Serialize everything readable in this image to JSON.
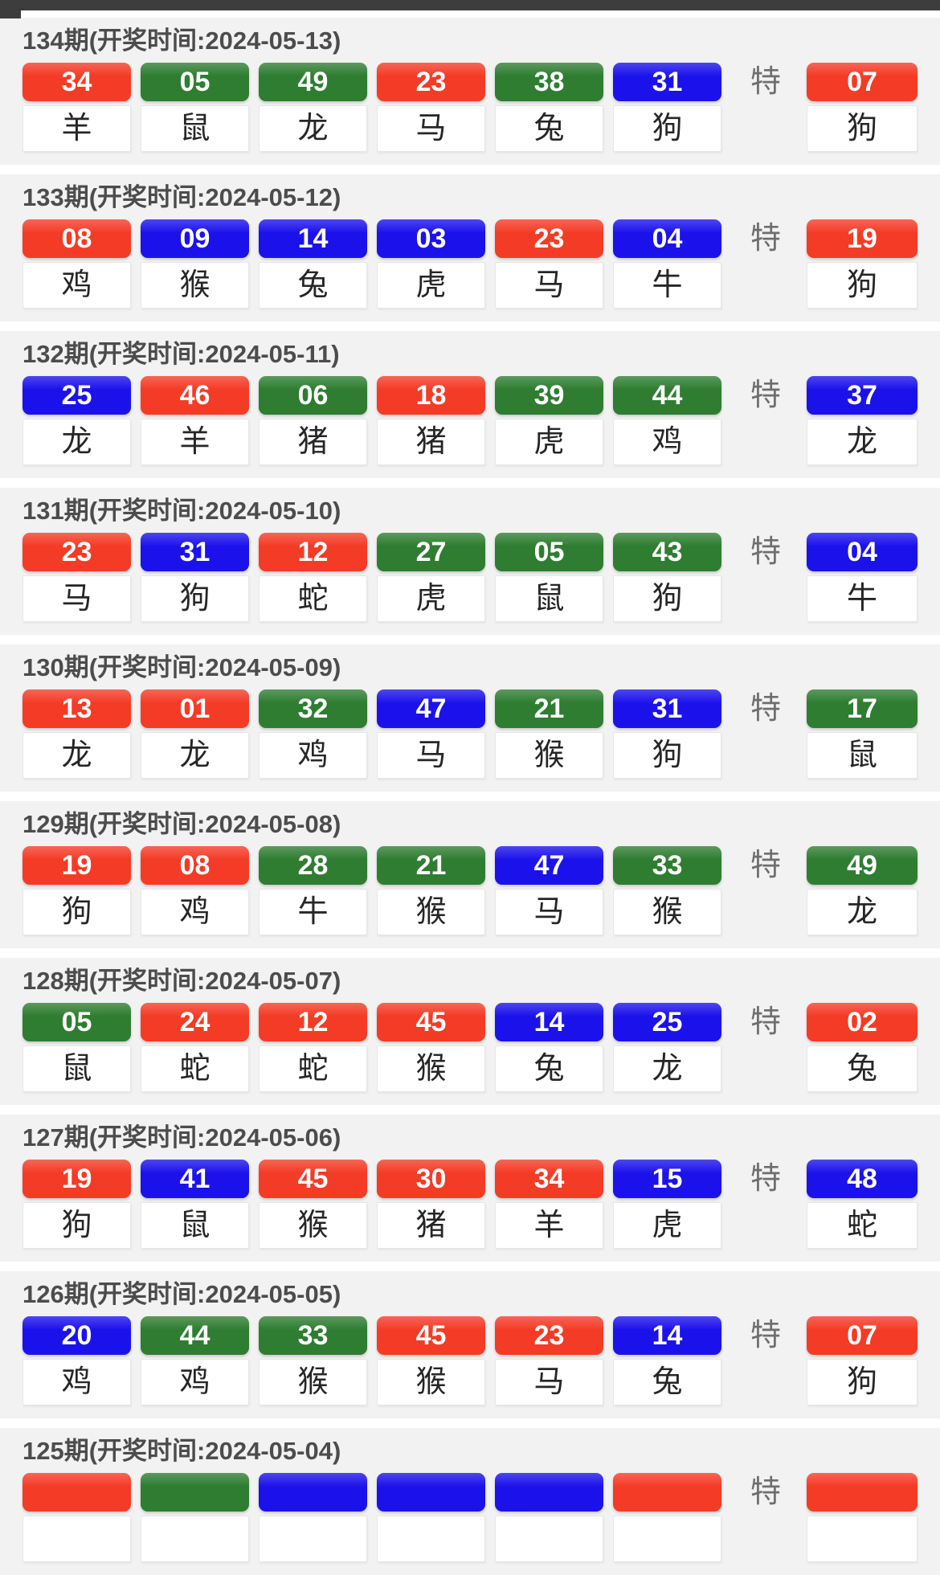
{
  "labels": {
    "special": "特"
  },
  "colors": {
    "red": "#f43b26",
    "green": "#2e7d31",
    "blue": "#1b12eb"
  },
  "draws": [
    {
      "title": "134期(开奖时间:2024-05-13)",
      "balls": [
        {
          "num": "34",
          "color": "red",
          "zodiac": "羊"
        },
        {
          "num": "05",
          "color": "green",
          "zodiac": "鼠"
        },
        {
          "num": "49",
          "color": "green",
          "zodiac": "龙"
        },
        {
          "num": "23",
          "color": "red",
          "zodiac": "马"
        },
        {
          "num": "38",
          "color": "green",
          "zodiac": "兔"
        },
        {
          "num": "31",
          "color": "blue",
          "zodiac": "狗"
        }
      ],
      "special": {
        "num": "07",
        "color": "red",
        "zodiac": "狗"
      }
    },
    {
      "title": "133期(开奖时间:2024-05-12)",
      "balls": [
        {
          "num": "08",
          "color": "red",
          "zodiac": "鸡"
        },
        {
          "num": "09",
          "color": "blue",
          "zodiac": "猴"
        },
        {
          "num": "14",
          "color": "blue",
          "zodiac": "兔"
        },
        {
          "num": "03",
          "color": "blue",
          "zodiac": "虎"
        },
        {
          "num": "23",
          "color": "red",
          "zodiac": "马"
        },
        {
          "num": "04",
          "color": "blue",
          "zodiac": "牛"
        }
      ],
      "special": {
        "num": "19",
        "color": "red",
        "zodiac": "狗"
      }
    },
    {
      "title": "132期(开奖时间:2024-05-11)",
      "balls": [
        {
          "num": "25",
          "color": "blue",
          "zodiac": "龙"
        },
        {
          "num": "46",
          "color": "red",
          "zodiac": "羊"
        },
        {
          "num": "06",
          "color": "green",
          "zodiac": "猪"
        },
        {
          "num": "18",
          "color": "red",
          "zodiac": "猪"
        },
        {
          "num": "39",
          "color": "green",
          "zodiac": "虎"
        },
        {
          "num": "44",
          "color": "green",
          "zodiac": "鸡"
        }
      ],
      "special": {
        "num": "37",
        "color": "blue",
        "zodiac": "龙"
      }
    },
    {
      "title": "131期(开奖时间:2024-05-10)",
      "balls": [
        {
          "num": "23",
          "color": "red",
          "zodiac": "马"
        },
        {
          "num": "31",
          "color": "blue",
          "zodiac": "狗"
        },
        {
          "num": "12",
          "color": "red",
          "zodiac": "蛇"
        },
        {
          "num": "27",
          "color": "green",
          "zodiac": "虎"
        },
        {
          "num": "05",
          "color": "green",
          "zodiac": "鼠"
        },
        {
          "num": "43",
          "color": "green",
          "zodiac": "狗"
        }
      ],
      "special": {
        "num": "04",
        "color": "blue",
        "zodiac": "牛"
      }
    },
    {
      "title": "130期(开奖时间:2024-05-09)",
      "balls": [
        {
          "num": "13",
          "color": "red",
          "zodiac": "龙"
        },
        {
          "num": "01",
          "color": "red",
          "zodiac": "龙"
        },
        {
          "num": "32",
          "color": "green",
          "zodiac": "鸡"
        },
        {
          "num": "47",
          "color": "blue",
          "zodiac": "马"
        },
        {
          "num": "21",
          "color": "green",
          "zodiac": "猴"
        },
        {
          "num": "31",
          "color": "blue",
          "zodiac": "狗"
        }
      ],
      "special": {
        "num": "17",
        "color": "green",
        "zodiac": "鼠"
      }
    },
    {
      "title": "129期(开奖时间:2024-05-08)",
      "balls": [
        {
          "num": "19",
          "color": "red",
          "zodiac": "狗"
        },
        {
          "num": "08",
          "color": "red",
          "zodiac": "鸡"
        },
        {
          "num": "28",
          "color": "green",
          "zodiac": "牛"
        },
        {
          "num": "21",
          "color": "green",
          "zodiac": "猴"
        },
        {
          "num": "47",
          "color": "blue",
          "zodiac": "马"
        },
        {
          "num": "33",
          "color": "green",
          "zodiac": "猴"
        }
      ],
      "special": {
        "num": "49",
        "color": "green",
        "zodiac": "龙"
      }
    },
    {
      "title": "128期(开奖时间:2024-05-07)",
      "balls": [
        {
          "num": "05",
          "color": "green",
          "zodiac": "鼠"
        },
        {
          "num": "24",
          "color": "red",
          "zodiac": "蛇"
        },
        {
          "num": "12",
          "color": "red",
          "zodiac": "蛇"
        },
        {
          "num": "45",
          "color": "red",
          "zodiac": "猴"
        },
        {
          "num": "14",
          "color": "blue",
          "zodiac": "兔"
        },
        {
          "num": "25",
          "color": "blue",
          "zodiac": "龙"
        }
      ],
      "special": {
        "num": "02",
        "color": "red",
        "zodiac": "兔"
      }
    },
    {
      "title": "127期(开奖时间:2024-05-06)",
      "balls": [
        {
          "num": "19",
          "color": "red",
          "zodiac": "狗"
        },
        {
          "num": "41",
          "color": "blue",
          "zodiac": "鼠"
        },
        {
          "num": "45",
          "color": "red",
          "zodiac": "猴"
        },
        {
          "num": "30",
          "color": "red",
          "zodiac": "猪"
        },
        {
          "num": "34",
          "color": "red",
          "zodiac": "羊"
        },
        {
          "num": "15",
          "color": "blue",
          "zodiac": "虎"
        }
      ],
      "special": {
        "num": "48",
        "color": "blue",
        "zodiac": "蛇"
      }
    },
    {
      "title": "126期(开奖时间:2024-05-05)",
      "balls": [
        {
          "num": "20",
          "color": "blue",
          "zodiac": "鸡"
        },
        {
          "num": "44",
          "color": "green",
          "zodiac": "鸡"
        },
        {
          "num": "33",
          "color": "green",
          "zodiac": "猴"
        },
        {
          "num": "45",
          "color": "red",
          "zodiac": "猴"
        },
        {
          "num": "23",
          "color": "red",
          "zodiac": "马"
        },
        {
          "num": "14",
          "color": "blue",
          "zodiac": "兔"
        }
      ],
      "special": {
        "num": "07",
        "color": "red",
        "zodiac": "狗"
      }
    },
    {
      "title": "125期(开奖时间:2024-05-04)",
      "balls": [
        {
          "num": "",
          "color": "red",
          "zodiac": ""
        },
        {
          "num": "",
          "color": "green",
          "zodiac": ""
        },
        {
          "num": "",
          "color": "blue",
          "zodiac": ""
        },
        {
          "num": "",
          "color": "blue",
          "zodiac": ""
        },
        {
          "num": "",
          "color": "blue",
          "zodiac": ""
        },
        {
          "num": "",
          "color": "red",
          "zodiac": ""
        }
      ],
      "special": {
        "num": "",
        "color": "red",
        "zodiac": ""
      }
    }
  ]
}
